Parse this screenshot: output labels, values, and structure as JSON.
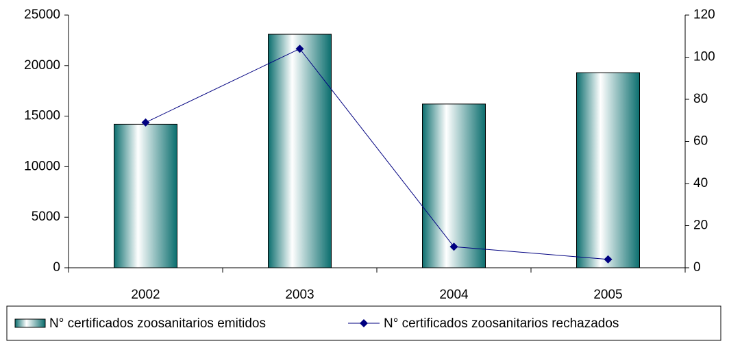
{
  "chart_data": {
    "type": "bar",
    "categories": [
      "2002",
      "2003",
      "2004",
      "2005"
    ],
    "series": [
      {
        "name": "N° certificados zoosanitarios emitidos",
        "type": "bar",
        "color": "#0b6e6e",
        "values": [
          14200,
          23100,
          16200,
          19300
        ]
      },
      {
        "name": "N° certificados zoosanitarios rechazados",
        "type": "line",
        "axis": "y2",
        "color": "#000080",
        "values": [
          69,
          104,
          10,
          4
        ]
      }
    ],
    "ylim": [
      0,
      25000
    ],
    "yticks": [
      0,
      5000,
      10000,
      15000,
      20000,
      25000
    ],
    "y2lim": [
      0,
      120
    ],
    "y2ticks": [
      0,
      20,
      40,
      60,
      80,
      100,
      120
    ],
    "grid": false,
    "legend": "bottom"
  }
}
